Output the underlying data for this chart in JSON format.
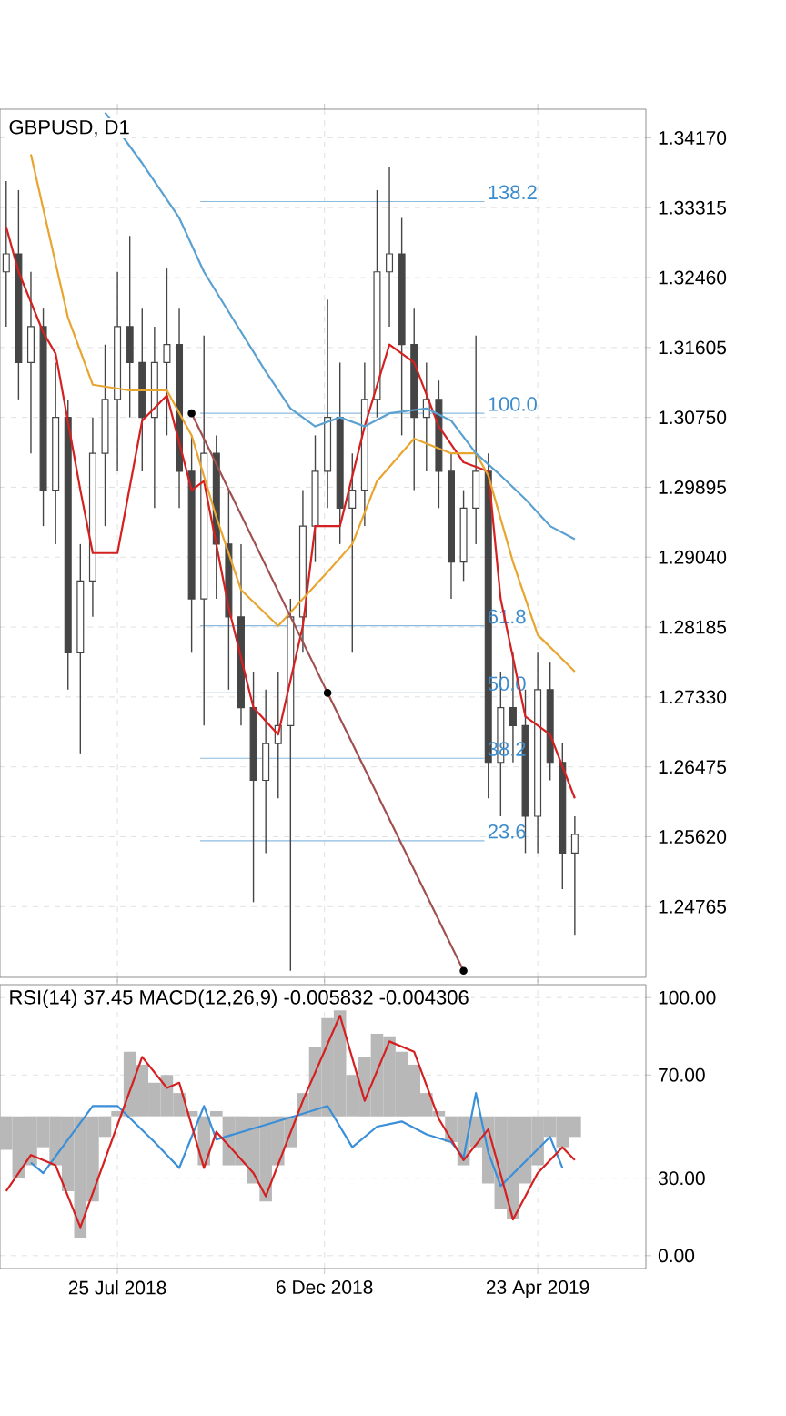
{
  "chart_data": [
    {
      "type": "candlestick",
      "title": "GBPUSD, D1",
      "tick_labels": "y",
      "grid": true,
      "x": [
        "2018-05-14",
        "2018-05-22",
        "2018-05-30",
        "2018-06-07",
        "2018-06-15",
        "2018-06-23",
        "2018-07-01",
        "2018-07-09",
        "2018-07-17",
        "2018-07-25",
        "2018-08-02",
        "2018-08-10",
        "2018-08-18",
        "2018-08-26",
        "2018-09-03",
        "2018-09-11",
        "2018-09-19",
        "2018-09-27",
        "2018-10-05",
        "2018-10-13",
        "2018-10-21",
        "2018-10-29",
        "2018-11-06",
        "2018-11-14",
        "2018-11-22",
        "2018-11-30",
        "2018-12-08",
        "2018-12-16",
        "2018-12-24",
        "2019-01-01",
        "2019-01-09",
        "2019-01-17",
        "2019-01-25",
        "2019-02-02",
        "2019-02-10",
        "2019-02-18",
        "2019-02-26",
        "2019-03-06",
        "2019-03-14",
        "2019-03-22",
        "2019-03-30",
        "2019-04-07",
        "2019-04-15",
        "2019-04-23",
        "2019-05-01",
        "2019-05-09",
        "2019-05-17"
      ],
      "ohlc": [
        [
          1.3253,
          1.3364,
          1.3186,
          1.3275
        ],
        [
          1.3275,
          1.3353,
          1.3097,
          1.3142
        ],
        [
          1.3142,
          1.3253,
          1.3031,
          1.3186
        ],
        [
          1.3186,
          1.3208,
          1.2942,
          1.2986
        ],
        [
          1.2986,
          1.3142,
          1.292,
          1.3075
        ],
        [
          1.3075,
          1.3097,
          1.2742,
          1.2787
        ],
        [
          1.2787,
          1.292,
          1.2664,
          1.2875
        ],
        [
          1.2875,
          1.3075,
          1.2831,
          1.3031
        ],
        [
          1.3031,
          1.3164,
          1.2942,
          1.3097
        ],
        [
          1.3097,
          1.3253,
          1.3009,
          1.3186
        ],
        [
          1.3186,
          1.3297,
          1.3075,
          1.3142
        ],
        [
          1.3142,
          1.3208,
          1.3009,
          1.3075
        ],
        [
          1.3075,
          1.3186,
          1.2964,
          1.3142
        ],
        [
          1.3142,
          1.3257,
          1.3053,
          1.3164
        ],
        [
          1.3164,
          1.3208,
          1.2964,
          1.3009
        ],
        [
          1.3009,
          1.3053,
          1.2787,
          1.2853
        ],
        [
          1.2853,
          1.3175,
          1.2698,
          1.3031
        ],
        [
          1.3031,
          1.3053,
          1.2853,
          1.292
        ],
        [
          1.292,
          1.2986,
          1.2742,
          1.2831
        ],
        [
          1.2831,
          1.292,
          1.2698,
          1.272
        ],
        [
          1.272,
          1.2764,
          1.2482,
          1.2631
        ],
        [
          1.2631,
          1.2742,
          1.2542,
          1.2676
        ],
        [
          1.2676,
          1.2764,
          1.2609,
          1.2698
        ],
        [
          1.2698,
          1.2853,
          1.2398,
          1.2831
        ],
        [
          1.2831,
          1.2986,
          1.2787,
          1.2942
        ],
        [
          1.2942,
          1.3053,
          1.2898,
          1.3009
        ],
        [
          1.3009,
          1.3219,
          1.2964,
          1.3075
        ],
        [
          1.3075,
          1.3142,
          1.292,
          1.2964
        ],
        [
          1.2964,
          1.3031,
          1.2787,
          1.2986
        ],
        [
          1.2986,
          1.3142,
          1.2942,
          1.3097
        ],
        [
          1.3097,
          1.3353,
          1.3075,
          1.3253
        ],
        [
          1.3253,
          1.3381,
          1.3186,
          1.3275
        ],
        [
          1.3275,
          1.3319,
          1.3053,
          1.3164
        ],
        [
          1.3164,
          1.3208,
          1.2986,
          1.3075
        ],
        [
          1.3075,
          1.3142,
          1.3009,
          1.3097
        ],
        [
          1.3097,
          1.312,
          1.2964,
          1.3009
        ],
        [
          1.3009,
          1.3031,
          1.2853,
          1.2898
        ],
        [
          1.2898,
          1.2986,
          1.2875,
          1.2964
        ],
        [
          1.2964,
          1.3175,
          1.292,
          1.3009
        ],
        [
          1.3009,
          1.3031,
          1.2609,
          1.2653
        ],
        [
          1.2653,
          1.2764,
          1.2587,
          1.272
        ],
        [
          1.272,
          1.2787,
          1.2653,
          1.2698
        ],
        [
          1.2698,
          1.2742,
          1.2542,
          1.2587
        ],
        [
          1.2587,
          1.2787,
          1.2542,
          1.2742
        ],
        [
          1.2742,
          1.2775,
          1.2631,
          1.2653
        ],
        [
          1.2653,
          1.2676,
          1.2498,
          1.2542
        ],
        [
          1.2542,
          1.2587,
          1.2442,
          1.2565
        ]
      ],
      "color": "#454545",
      "series": [
        {
          "type": "line",
          "color": "#d42020",
          "x": [
            "2018-05-14",
            "2018-05-22",
            "2018-06-07",
            "2018-06-15",
            "2018-07-01",
            "2018-07-09",
            "2018-07-25",
            "2018-08-10",
            "2018-08-26",
            "2018-09-11",
            "2018-09-19",
            "2018-10-05",
            "2018-10-21",
            "2018-11-06",
            "2018-11-22",
            "2018-11-30",
            "2018-12-16",
            "2019-01-01",
            "2019-01-17",
            "2019-02-02",
            "2019-02-18",
            "2019-03-06",
            "2019-03-22",
            "2019-03-30",
            "2019-04-15",
            "2019-05-01",
            "2019-05-17"
          ],
          "values": [
            1.3308,
            1.3253,
            1.3179,
            1.3153,
            1.2986,
            1.2909,
            1.2909,
            1.3071,
            1.3102,
            1.2986,
            1.2997,
            1.2842,
            1.272,
            1.2687,
            1.282,
            1.2942,
            1.2942,
            1.3064,
            1.3164,
            1.3142,
            1.3064,
            1.302,
            1.3009,
            1.2853,
            1.2709,
            1.2687,
            1.2609
          ]
        },
        {
          "type": "line",
          "color": "#e8a530",
          "x": [
            "2018-05-30",
            "2018-06-07",
            "2018-06-23",
            "2018-07-09",
            "2018-08-02",
            "2018-08-26",
            "2018-09-11",
            "2018-09-27",
            "2018-10-13",
            "2018-11-06",
            "2018-11-22",
            "2018-12-08",
            "2018-12-24",
            "2019-01-09",
            "2019-02-02",
            "2019-02-26",
            "2019-03-14",
            "2019-03-22",
            "2019-04-07",
            "2019-04-23",
            "2019-05-17"
          ],
          "values": [
            1.3397,
            1.333,
            1.3197,
            1.3115,
            1.3108,
            1.3108,
            1.3053,
            1.2953,
            1.2864,
            1.282,
            1.2853,
            1.2886,
            1.292,
            1.2997,
            1.3049,
            1.3031,
            1.3031,
            1.3004,
            1.2898,
            1.2809,
            1.2764
          ]
        },
        {
          "type": "line",
          "color": "#5aa0d0",
          "x": [
            "2018-07-17",
            "2018-08-10",
            "2018-09-03",
            "2018-09-19",
            "2018-10-05",
            "2018-10-29",
            "2018-11-14",
            "2018-11-30",
            "2018-12-16",
            "2019-01-01",
            "2019-01-17",
            "2019-02-10",
            "2019-02-26",
            "2019-03-14",
            "2019-03-30",
            "2019-04-15",
            "2019-05-01",
            "2019-05-17"
          ],
          "values": [
            1.3448,
            1.3386,
            1.3319,
            1.3253,
            1.3204,
            1.3131,
            1.3086,
            1.3064,
            1.3075,
            1.3064,
            1.308,
            1.3086,
            1.3071,
            1.3031,
            1.3004,
            1.2975,
            1.2942,
            1.2926
          ]
        },
        {
          "type": "line",
          "color": "#a05050",
          "marker": "circle",
          "x": [
            "2018-09-11",
            "2018-12-08",
            "2019-03-06"
          ],
          "values": [
            1.308,
            1.2738,
            1.2398
          ]
        }
      ],
      "ref_lines": [
        {
          "axis": "y",
          "value": 1.3339,
          "color": "#8cbbe0"
        },
        {
          "axis": "y",
          "value": 1.308,
          "color": "#8cbbe0"
        },
        {
          "axis": "y",
          "value": 1.282,
          "color": "#8cbbe0"
        },
        {
          "axis": "y",
          "value": 1.2738,
          "color": "#8cbbe0"
        },
        {
          "axis": "y",
          "value": 1.2658,
          "color": "#8cbbe0"
        },
        {
          "axis": "y",
          "value": 1.2557,
          "color": "#8cbbe0"
        }
      ],
      "annotations": [
        {
          "text": "138.2",
          "x": "2019-03-20",
          "y": 1.3339
        },
        {
          "text": "100.0",
          "x": "2019-03-20",
          "y": 1.308
        },
        {
          "text": "61.8",
          "x": "2019-03-20",
          "y": 1.282
        },
        {
          "text": "50.0",
          "x": "2019-03-20",
          "y": 1.2738
        },
        {
          "text": "38.2",
          "x": "2019-03-20",
          "y": 1.2658
        },
        {
          "text": "23.6",
          "x": "2019-03-20",
          "y": 1.2557
        }
      ],
      "xlim": [
        "2018-05-10",
        "2019-07-02"
      ],
      "xticks": [
        {
          "value": "2018-07-25",
          "label": null
        },
        {
          "value": "2018-12-06",
          "label": null
        },
        {
          "value": "2019-04-23",
          "label": null
        }
      ],
      "ylim": [
        1.239,
        1.3452
      ],
      "yticks": [
        {
          "value": 1.3417,
          "label": "1.34170"
        },
        {
          "value": 1.33315,
          "label": "1.33315"
        },
        {
          "value": 1.3246,
          "label": "1.32460"
        },
        {
          "value": 1.31605,
          "label": "1.31605"
        },
        {
          "value": 1.3075,
          "label": "1.30750"
        },
        {
          "value": 1.29895,
          "label": "1.29895"
        },
        {
          "value": 1.2904,
          "label": "1.29040"
        },
        {
          "value": 1.28185,
          "label": "1.28185"
        },
        {
          "value": 1.2733,
          "label": "1.27330"
        },
        {
          "value": 1.26475,
          "label": "1.26475"
        },
        {
          "value": 1.2562,
          "label": "1.25620"
        },
        {
          "value": 1.24765,
          "label": "1.24765"
        }
      ]
    },
    {
      "type": "line",
      "title": "RSI(14) 37.45 MACD(12,26,9) -0.005832 -0.004306",
      "grid": true,
      "x": [
        "2018-05-14",
        "2018-05-22",
        "2018-05-30",
        "2018-06-07",
        "2018-06-15",
        "2018-06-23",
        "2018-07-01",
        "2018-07-09",
        "2018-07-17",
        "2018-07-25",
        "2018-08-02",
        "2018-08-10",
        "2018-08-18",
        "2018-08-26",
        "2018-09-03",
        "2018-09-11",
        "2018-09-19",
        "2018-09-27",
        "2018-10-05",
        "2018-10-13",
        "2018-10-21",
        "2018-10-29",
        "2018-11-06",
        "2018-11-14",
        "2018-11-22",
        "2018-11-30",
        "2018-12-08",
        "2018-12-16",
        "2018-12-24",
        "2019-01-01",
        "2019-01-09",
        "2019-01-17",
        "2019-01-25",
        "2019-02-02",
        "2019-02-10",
        "2019-02-18",
        "2019-02-26",
        "2019-03-06",
        "2019-03-14",
        "2019-03-22",
        "2019-03-30",
        "2019-04-07",
        "2019-04-15",
        "2019-04-23",
        "2019-05-01",
        "2019-05-09",
        "2019-05-17"
      ],
      "series": [
        {
          "type": "bar",
          "color": "#b8b8b8",
          "base": [
            54,
            54,
            54,
            54,
            54,
            54,
            54,
            54,
            54,
            54,
            54,
            54,
            54,
            54,
            54,
            54,
            54,
            54,
            54,
            54,
            54,
            54,
            54,
            54,
            54,
            54,
            54,
            54,
            54,
            54,
            54,
            54,
            54,
            54,
            54,
            54,
            54,
            54,
            54,
            54,
            54,
            54,
            54,
            54,
            54,
            54,
            54
          ],
          "values": [
            -13,
            -24,
            -19,
            -12,
            -19,
            -29,
            -47,
            -33,
            -8,
            2,
            25,
            20,
            13,
            16,
            9,
            2,
            -19,
            2,
            -19,
            -19,
            -26,
            -33,
            -19,
            -12,
            9,
            27,
            38,
            41,
            16,
            23,
            32,
            31,
            25,
            20,
            9,
            2,
            -10,
            -19,
            -12,
            -26,
            -36,
            -40,
            -26,
            -19,
            -8,
            -12,
            -8
          ]
        },
        {
          "type": "line",
          "color": "#3a8fd8",
          "x": [
            "2018-05-30",
            "2018-06-07",
            "2018-07-09",
            "2018-07-25",
            "2018-08-18",
            "2018-09-03",
            "2018-09-19",
            "2018-09-27",
            "2018-11-22",
            "2018-12-08",
            "2018-12-24",
            "2019-01-09",
            "2019-01-25",
            "2019-02-10",
            "2019-02-26",
            "2019-03-06",
            "2019-03-14",
            "2019-03-22",
            "2019-03-30",
            "2019-05-01",
            "2019-05-09"
          ],
          "values": [
            36,
            32,
            58,
            58,
            44,
            34,
            58,
            45,
            55,
            58,
            42,
            50,
            52,
            47,
            44,
            38,
            63,
            40,
            27,
            46,
            34
          ]
        },
        {
          "type": "line",
          "color": "#d42020",
          "x": [
            "2018-05-14",
            "2018-05-30",
            "2018-06-15",
            "2018-07-01",
            "2018-08-10",
            "2018-08-26",
            "2018-09-03",
            "2018-09-19",
            "2018-09-27",
            "2018-10-21",
            "2018-10-29",
            "2018-11-22",
            "2018-12-16",
            "2019-01-01",
            "2019-01-17",
            "2019-02-02",
            "2019-02-18",
            "2019-03-06",
            "2019-03-22",
            "2019-04-07",
            "2019-04-23",
            "2019-05-09",
            "2019-05-17"
          ],
          "values": [
            25,
            39,
            35,
            11,
            77,
            65,
            67,
            34,
            48,
            32,
            23,
            60,
            93,
            60,
            83,
            79,
            53,
            37,
            49,
            14,
            32,
            42,
            37
          ]
        }
      ],
      "xlim": [
        "2018-05-10",
        "2019-07-02"
      ],
      "xticks": [
        {
          "value": "2018-07-25",
          "label": "25 Jul 2018"
        },
        {
          "value": "2018-12-06",
          "label": "6 Dec 2018"
        },
        {
          "value": "2019-04-23",
          "label": "23 Apr 2019"
        }
      ],
      "ylim": [
        -5,
        105
      ],
      "yticks": [
        {
          "value": 0,
          "label": "0.00"
        },
        {
          "value": 30,
          "label": "30.00"
        },
        {
          "value": 70,
          "label": "70.00"
        },
        {
          "value": 100,
          "label": "100.00"
        }
      ]
    }
  ]
}
